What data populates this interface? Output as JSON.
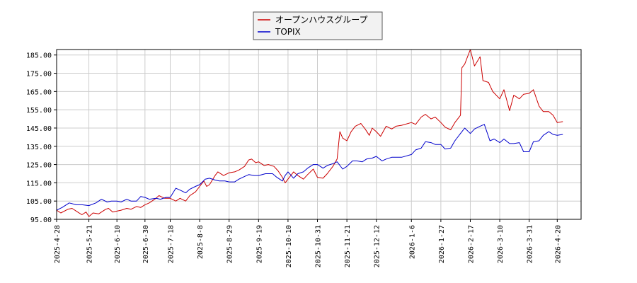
{
  "chart_data": {
    "type": "line",
    "title": "",
    "xlabel": "",
    "ylabel": "",
    "ylim": [
      95,
      188
    ],
    "xlim": [
      "2025-04-28",
      "2026-05-07"
    ],
    "grid": true,
    "legend_position": "top-center",
    "y_ticks": [
      "95.00",
      "105.00",
      "115.00",
      "125.00",
      "135.00",
      "145.00",
      "155.00",
      "165.00",
      "175.00",
      "185.00"
    ],
    "x_ticks": [
      "2025-4-28",
      "2025-5-21",
      "2025-6-10",
      "2025-6-30",
      "2025-7-18",
      "2025-8-8",
      "2025-8-29",
      "2025-9-19",
      "2025-10-10",
      "2025-10-31",
      "2025-11-21",
      "2025-12-12",
      "2026-1-6",
      "2026-1-27",
      "2026-2-17",
      "2026-3-10",
      "2026-3-31",
      "2026-4-20"
    ],
    "series": [
      {
        "name": "オープンハウスグループ",
        "color": "#cc0000",
        "points": [
          [
            "2025-04-28",
            100
          ],
          [
            "2025-05-01",
            98.5
          ],
          [
            "2025-05-06",
            100.5
          ],
          [
            "2025-05-09",
            101
          ],
          [
            "2025-05-13",
            99
          ],
          [
            "2025-05-16",
            97.5
          ],
          [
            "2025-05-19",
            99
          ],
          [
            "2025-05-21",
            96.5
          ],
          [
            "2025-05-24",
            98.5
          ],
          [
            "2025-05-28",
            98
          ],
          [
            "2025-06-02",
            100.5
          ],
          [
            "2025-06-04",
            101
          ],
          [
            "2025-06-07",
            99
          ],
          [
            "2025-06-10",
            99.5
          ],
          [
            "2025-06-13",
            100
          ],
          [
            "2025-06-17",
            101
          ],
          [
            "2025-06-20",
            100.5
          ],
          [
            "2025-06-24",
            102
          ],
          [
            "2025-06-27",
            101.5
          ],
          [
            "2025-06-30",
            103
          ],
          [
            "2025-07-03",
            104
          ],
          [
            "2025-07-07",
            106
          ],
          [
            "2025-07-10",
            108
          ],
          [
            "2025-07-14",
            106.5
          ],
          [
            "2025-07-18",
            106.5
          ],
          [
            "2025-07-22",
            105
          ],
          [
            "2025-07-25",
            106.5
          ],
          [
            "2025-07-29",
            105
          ],
          [
            "2025-08-01",
            108
          ],
          [
            "2025-08-05",
            110
          ],
          [
            "2025-08-08",
            113
          ],
          [
            "2025-08-11",
            116
          ],
          [
            "2025-08-13",
            113
          ],
          [
            "2025-08-15",
            114
          ],
          [
            "2025-08-19",
            119
          ],
          [
            "2025-08-21",
            121
          ],
          [
            "2025-08-25",
            119
          ],
          [
            "2025-08-29",
            120.5
          ],
          [
            "2025-09-02",
            121
          ],
          [
            "2025-09-05",
            122
          ],
          [
            "2025-09-09",
            124
          ],
          [
            "2025-09-12",
            127.5
          ],
          [
            "2025-09-14",
            128
          ],
          [
            "2025-09-17",
            126
          ],
          [
            "2025-09-19",
            126.5
          ],
          [
            "2025-09-23",
            124.5
          ],
          [
            "2025-09-26",
            125
          ],
          [
            "2025-09-30",
            124
          ],
          [
            "2025-10-03",
            121.5
          ],
          [
            "2025-10-06",
            118
          ],
          [
            "2025-10-08",
            115
          ],
          [
            "2025-10-10",
            117
          ],
          [
            "2025-10-14",
            121
          ],
          [
            "2025-10-17",
            119
          ],
          [
            "2025-10-21",
            117
          ],
          [
            "2025-10-24",
            119.5
          ],
          [
            "2025-10-28",
            122.5
          ],
          [
            "2025-10-31",
            118
          ],
          [
            "2025-11-04",
            117.5
          ],
          [
            "2025-11-07",
            120
          ],
          [
            "2025-11-11",
            124
          ],
          [
            "2025-11-14",
            128
          ],
          [
            "2025-11-16",
            143
          ],
          [
            "2025-11-18",
            139.5
          ],
          [
            "2025-11-21",
            138
          ],
          [
            "2025-11-24",
            143
          ],
          [
            "2025-11-27",
            146
          ],
          [
            "2025-12-01",
            147.5
          ],
          [
            "2025-12-04",
            144.5
          ],
          [
            "2025-12-07",
            141
          ],
          [
            "2025-12-09",
            145
          ],
          [
            "2025-12-12",
            143
          ],
          [
            "2025-12-15",
            140.5
          ],
          [
            "2025-12-19",
            146
          ],
          [
            "2025-12-23",
            144.5
          ],
          [
            "2025-12-26",
            146
          ],
          [
            "2025-12-30",
            146.5
          ],
          [
            "2026-01-06",
            148
          ],
          [
            "2026-01-09",
            147
          ],
          [
            "2026-01-13",
            151
          ],
          [
            "2026-01-16",
            152.5
          ],
          [
            "2026-01-20",
            150
          ],
          [
            "2026-01-23",
            151
          ],
          [
            "2026-01-27",
            148
          ],
          [
            "2026-01-30",
            145.5
          ],
          [
            "2026-02-03",
            144
          ],
          [
            "2026-02-06",
            148
          ],
          [
            "2026-02-10",
            152
          ],
          [
            "2026-02-11",
            178
          ],
          [
            "2026-02-13",
            180
          ],
          [
            "2026-02-17",
            188
          ],
          [
            "2026-02-20",
            179
          ],
          [
            "2026-02-24",
            184
          ],
          [
            "2026-02-26",
            171
          ],
          [
            "2026-03-02",
            170
          ],
          [
            "2026-03-05",
            165
          ],
          [
            "2026-03-10",
            161
          ],
          [
            "2026-03-13",
            166
          ],
          [
            "2026-03-17",
            154.5
          ],
          [
            "2026-03-20",
            163
          ],
          [
            "2026-03-24",
            161
          ],
          [
            "2026-03-27",
            163.5
          ],
          [
            "2026-03-31",
            164
          ],
          [
            "2026-04-03",
            166
          ],
          [
            "2026-04-07",
            157
          ],
          [
            "2026-04-10",
            154
          ],
          [
            "2026-04-14",
            154
          ],
          [
            "2026-04-17",
            152
          ],
          [
            "2026-04-20",
            148
          ],
          [
            "2026-04-24",
            148.5
          ]
        ]
      },
      {
        "name": "TOPIX",
        "color": "#0000cc",
        "points": [
          [
            "2025-04-28",
            100
          ],
          [
            "2025-05-02",
            101.5
          ],
          [
            "2025-05-07",
            104
          ],
          [
            "2025-05-12",
            103
          ],
          [
            "2025-05-16",
            103
          ],
          [
            "2025-05-21",
            102.5
          ],
          [
            "2025-05-26",
            104
          ],
          [
            "2025-05-30",
            106
          ],
          [
            "2025-06-03",
            104.5
          ],
          [
            "2025-06-06",
            105
          ],
          [
            "2025-06-10",
            105
          ],
          [
            "2025-06-13",
            104.5
          ],
          [
            "2025-06-17",
            106
          ],
          [
            "2025-06-20",
            105
          ],
          [
            "2025-06-24",
            105
          ],
          [
            "2025-06-27",
            107.5
          ],
          [
            "2025-06-30",
            107
          ],
          [
            "2025-07-03",
            106
          ],
          [
            "2025-07-08",
            106.5
          ],
          [
            "2025-07-11",
            106
          ],
          [
            "2025-07-15",
            107
          ],
          [
            "2025-07-18",
            107
          ],
          [
            "2025-07-22",
            112
          ],
          [
            "2025-07-25",
            111
          ],
          [
            "2025-07-29",
            109.5
          ],
          [
            "2025-08-01",
            111.5
          ],
          [
            "2025-08-05",
            113
          ],
          [
            "2025-08-08",
            114
          ],
          [
            "2025-08-12",
            117
          ],
          [
            "2025-08-15",
            117.5
          ],
          [
            "2025-08-19",
            116.5
          ],
          [
            "2025-08-22",
            116
          ],
          [
            "2025-08-26",
            116
          ],
          [
            "2025-08-29",
            115.5
          ],
          [
            "2025-09-02",
            115.5
          ],
          [
            "2025-09-05",
            117
          ],
          [
            "2025-09-09",
            118.5
          ],
          [
            "2025-09-12",
            119.5
          ],
          [
            "2025-09-16",
            119
          ],
          [
            "2025-09-19",
            119
          ],
          [
            "2025-09-24",
            120
          ],
          [
            "2025-09-29",
            120
          ],
          [
            "2025-10-02",
            118
          ],
          [
            "2025-10-06",
            116
          ],
          [
            "2025-10-08",
            119
          ],
          [
            "2025-10-10",
            121
          ],
          [
            "2025-10-14",
            117.5
          ],
          [
            "2025-10-17",
            120
          ],
          [
            "2025-10-21",
            121
          ],
          [
            "2025-10-24",
            123
          ],
          [
            "2025-10-28",
            125
          ],
          [
            "2025-10-31",
            125
          ],
          [
            "2025-11-04",
            123
          ],
          [
            "2025-11-07",
            124.5
          ],
          [
            "2025-11-11",
            125.5
          ],
          [
            "2025-11-14",
            126.5
          ],
          [
            "2025-11-18",
            122.5
          ],
          [
            "2025-11-21",
            124
          ],
          [
            "2025-11-25",
            127
          ],
          [
            "2025-11-28",
            127
          ],
          [
            "2025-12-02",
            126.5
          ],
          [
            "2025-12-05",
            128
          ],
          [
            "2025-12-09",
            128.5
          ],
          [
            "2025-12-12",
            129.5
          ],
          [
            "2025-12-16",
            127
          ],
          [
            "2025-12-19",
            128
          ],
          [
            "2025-12-23",
            129
          ],
          [
            "2025-12-30",
            129
          ],
          [
            "2026-01-06",
            130.5
          ],
          [
            "2026-01-09",
            133
          ],
          [
            "2026-01-13",
            134
          ],
          [
            "2026-01-16",
            137.5
          ],
          [
            "2026-01-20",
            137
          ],
          [
            "2026-01-23",
            136
          ],
          [
            "2026-01-27",
            136
          ],
          [
            "2026-01-30",
            133.5
          ],
          [
            "2026-02-03",
            134
          ],
          [
            "2026-02-06",
            138
          ],
          [
            "2026-02-10",
            142
          ],
          [
            "2026-02-13",
            145
          ],
          [
            "2026-02-17",
            142
          ],
          [
            "2026-02-20",
            144.5
          ],
          [
            "2026-02-24",
            146
          ],
          [
            "2026-02-27",
            147
          ],
          [
            "2026-03-03",
            138
          ],
          [
            "2026-03-06",
            139
          ],
          [
            "2026-03-10",
            137
          ],
          [
            "2026-03-13",
            139
          ],
          [
            "2026-03-17",
            136.5
          ],
          [
            "2026-03-20",
            136.5
          ],
          [
            "2026-03-24",
            137
          ],
          [
            "2026-03-27",
            132
          ],
          [
            "2026-03-31",
            132
          ],
          [
            "2026-04-03",
            137.5
          ],
          [
            "2026-04-07",
            138
          ],
          [
            "2026-04-10",
            141
          ],
          [
            "2026-04-14",
            143
          ],
          [
            "2026-04-17",
            141.5
          ],
          [
            "2026-04-20",
            141
          ],
          [
            "2026-04-24",
            141.5
          ]
        ]
      }
    ]
  }
}
